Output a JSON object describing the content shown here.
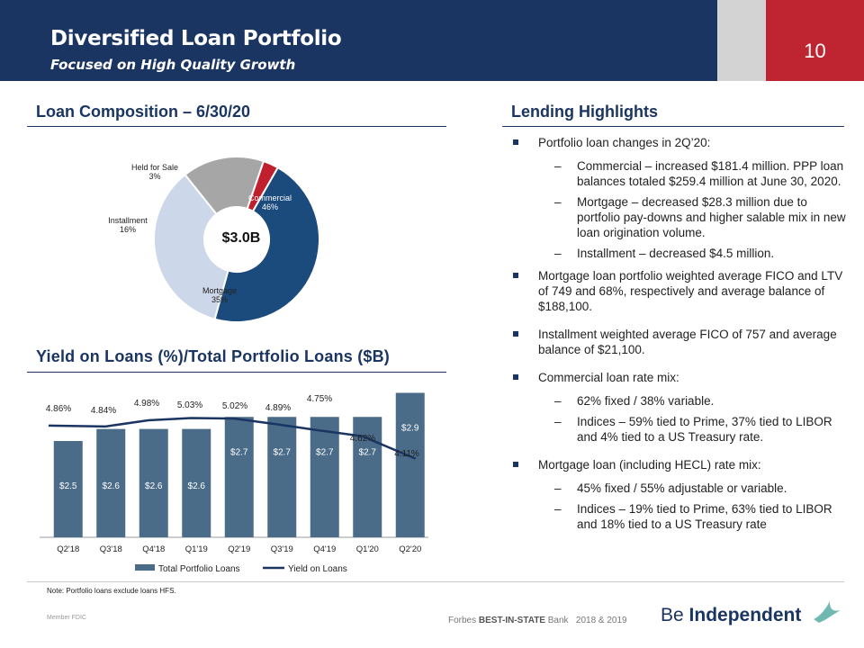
{
  "header": {
    "title": "Diversified Loan Portfolio",
    "subtitle": "Focused on High Quality Growth",
    "page_number": "10"
  },
  "composition": {
    "title": "Loan Composition – 6/30/20",
    "center_label": "$3.0B"
  },
  "highlights": {
    "title": "Lending Highlights",
    "items": [
      {
        "text": "Portfolio loan changes in 2Q’20:",
        "subs": [
          "Commercial – increased $181.4 million. PPP loan balances totaled $259.4 million at June 30, 2020.",
          "Mortgage – decreased $28.3 million due to portfolio pay-downs and higher salable mix in new loan origination volume.",
          "Installment – decreased $4.5 million."
        ]
      },
      {
        "text": "Mortgage loan portfolio weighted average FICO and LTV of 749 and 68%, respectively and average balance of $188,100.",
        "subs": []
      },
      {
        "text": "Installment weighted average FICO of 757 and average balance of $21,100.",
        "subs": []
      },
      {
        "text": "Commercial loan rate mix:",
        "subs": [
          "62% fixed / 38% variable.",
          "Indices – 59% tied to Prime, 37% tied to LIBOR and 4% tied to a US Treasury rate."
        ]
      },
      {
        "text": "Mortgage loan (including HECL) rate mix:",
        "subs": [
          "45% fixed / 55% adjustable or variable.",
          "Indices – 19% tied to Prime, 63% tied to LIBOR and 18% tied to a US Treasury rate"
        ]
      }
    ]
  },
  "yield_section": {
    "title": "Yield on Loans (%)/Total Portfolio Loans ($B)"
  },
  "chart_data": [
    {
      "type": "pie",
      "title": "",
      "center_label": "$3.0B",
      "slices": [
        {
          "name": "Commercial",
          "value": 46,
          "label": "46%",
          "color": "#1b4a7c"
        },
        {
          "name": "Mortgage",
          "value": 35,
          "label": "35%",
          "color": "#cdd7ea"
        },
        {
          "name": "Installment",
          "value": 16,
          "label": "16%",
          "color": "#a6a6a6"
        },
        {
          "name": "Held for Sale",
          "value": 3,
          "label": "3%",
          "color": "#c0202d"
        }
      ]
    },
    {
      "type": "bar",
      "title": "",
      "categories": [
        "Q2'18",
        "Q3'18",
        "Q4'18",
        "Q1'19",
        "Q2'19",
        "Q3'19",
        "Q4'19",
        "Q1'20",
        "Q2'20"
      ],
      "series": [
        {
          "name": "Total Portfolio Loans",
          "type": "bar",
          "color": "#4a6c89",
          "values": [
            2.5,
            2.6,
            2.6,
            2.6,
            2.7,
            2.7,
            2.7,
            2.7,
            2.9
          ],
          "labels": [
            "$2.5",
            "$2.6",
            "$2.6",
            "$2.6",
            "$2.7",
            "$2.7",
            "$2.7",
            "$2.7",
            "$2.9"
          ]
        },
        {
          "name": "Yield on Loans",
          "type": "line",
          "color": "#1b3563",
          "values": [
            4.86,
            4.84,
            4.98,
            5.03,
            5.02,
            4.89,
            4.75,
            4.62,
            4.11
          ],
          "labels": [
            "4.86%",
            "4.84%",
            "4.98%",
            "5.03%",
            "5.02%",
            "4.89%",
            "4.75%",
            "4.62%",
            "4.11%"
          ]
        }
      ],
      "legend": "bottom",
      "grid": false
    }
  ],
  "note": "Note: Portfolio loans exclude loans HFS.",
  "footer": {
    "badge": "Member FDIC",
    "forbes_prefix": "Forbes",
    "forbes_bold": "BEST-IN-STATE",
    "forbes_suffix": "Bank   2018 & 2019",
    "logo_light": "Be",
    "logo_bold": "Independent"
  }
}
